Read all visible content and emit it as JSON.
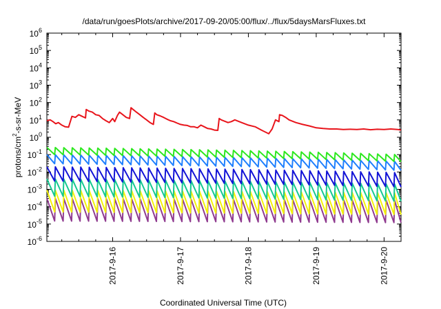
{
  "chart_data": {
    "type": "line",
    "title": "/data/run/goesPlots/archive/2017-09-20/05:00/flux/../flux/5daysMarsFluxes.txt",
    "xlabel": "Coordinated Universal Time (UTC)",
    "ylabel_parts": [
      "protons/cm",
      "2",
      "-s-sr-MeV"
    ],
    "y_scale": "log",
    "y_range_exp": [
      -6,
      6
    ],
    "y_tick_exponents": [
      -6,
      -5,
      -4,
      -3,
      -2,
      -1,
      0,
      1,
      2,
      3,
      4,
      5,
      6
    ],
    "y_tick_base": "10",
    "x_range_days": [
      15.03,
      20.25
    ],
    "x_ticks": [
      {
        "day": 16,
        "label": "2017-9-16"
      },
      {
        "day": 17,
        "label": "2017-9-17"
      },
      {
        "day": 18,
        "label": "2017-9-18"
      },
      {
        "day": 19,
        "label": "2017-9-19"
      },
      {
        "day": 20,
        "label": "2017-9-20"
      }
    ],
    "grid": false,
    "legend": "none",
    "series": [
      {
        "color": "#e8141b",
        "pattern": "smooth",
        "x": [
          15.03,
          15.08,
          15.12,
          15.16,
          15.2,
          15.25,
          15.3,
          15.35,
          15.4,
          15.45,
          15.5,
          15.55,
          15.6,
          15.61,
          15.65,
          15.7,
          15.75,
          15.8,
          15.85,
          15.9,
          15.95,
          16.0,
          16.03,
          16.07,
          16.1,
          16.15,
          16.2,
          16.25,
          16.27,
          16.3,
          16.35,
          16.4,
          16.45,
          16.5,
          16.55,
          16.6,
          16.62,
          16.65,
          16.7,
          16.75,
          16.8,
          16.85,
          16.9,
          16.95,
          17.0,
          17.05,
          17.1,
          17.15,
          17.2,
          17.25,
          17.3,
          17.35,
          17.4,
          17.45,
          17.5,
          17.55,
          17.57,
          17.6,
          17.7,
          17.75,
          17.8,
          17.9,
          18.0,
          18.1,
          18.2,
          18.3,
          18.35,
          18.4,
          18.45,
          18.46,
          18.5,
          18.55,
          18.6,
          18.7,
          18.8,
          18.9,
          19.0,
          19.1,
          19.2,
          19.3,
          19.4,
          19.5,
          19.6,
          19.7,
          19.8,
          19.9,
          20.0,
          20.1,
          20.2,
          20.25
        ],
        "y": [
          9,
          10,
          8,
          6,
          7,
          5,
          4,
          3.8,
          16,
          14,
          20,
          16,
          13,
          40,
          32,
          28,
          20,
          18,
          12,
          9,
          7,
          12,
          8,
          18,
          28,
          20,
          14,
          12,
          50,
          40,
          28,
          20,
          14,
          10,
          7,
          5.5,
          25,
          20,
          17,
          14,
          11,
          9,
          8,
          6.5,
          5.5,
          5,
          4.8,
          4,
          4,
          3.5,
          5,
          4,
          3.2,
          3,
          2.6,
          2.5,
          12,
          10,
          7,
          8,
          10,
          7,
          5,
          4,
          2.5,
          1.6,
          3,
          10,
          8,
          20,
          18,
          14,
          10,
          7,
          5.5,
          4.5,
          3.5,
          3.2,
          3,
          3,
          2.8,
          2.9,
          2.8,
          3,
          2.7,
          2.9,
          2.8,
          3,
          2.8,
          2.6
        ]
      },
      {
        "color": "#2ce81e",
        "pattern": "saw",
        "base": 0.15,
        "spike": 0.26,
        "floor": 0.1,
        "end_factor": 0.38
      },
      {
        "color": "#1e7ffe",
        "pattern": "saw",
        "base": 0.05,
        "spike": 0.1,
        "floor": 0.03,
        "end_factor": 0.4
      },
      {
        "color": "#1212d6",
        "pattern": "saw",
        "base": 0.008,
        "spike": 0.02,
        "floor": 0.003,
        "end_factor": 0.45
      },
      {
        "color": "#14c890",
        "pattern": "saw",
        "base": 0.0015,
        "spike": 0.004,
        "floor": 0.0004,
        "end_factor": 0.5
      },
      {
        "color": "#f3f20a",
        "pattern": "saw",
        "base": 0.0002,
        "spike": 0.0009,
        "floor": 4e-05,
        "end_factor": 0.7
      },
      {
        "color": "#8f3a8f",
        "pattern": "saw",
        "base": 5e-05,
        "spike": 0.0003,
        "floor": 1.5e-05,
        "end_factor": 0.8
      }
    ]
  }
}
